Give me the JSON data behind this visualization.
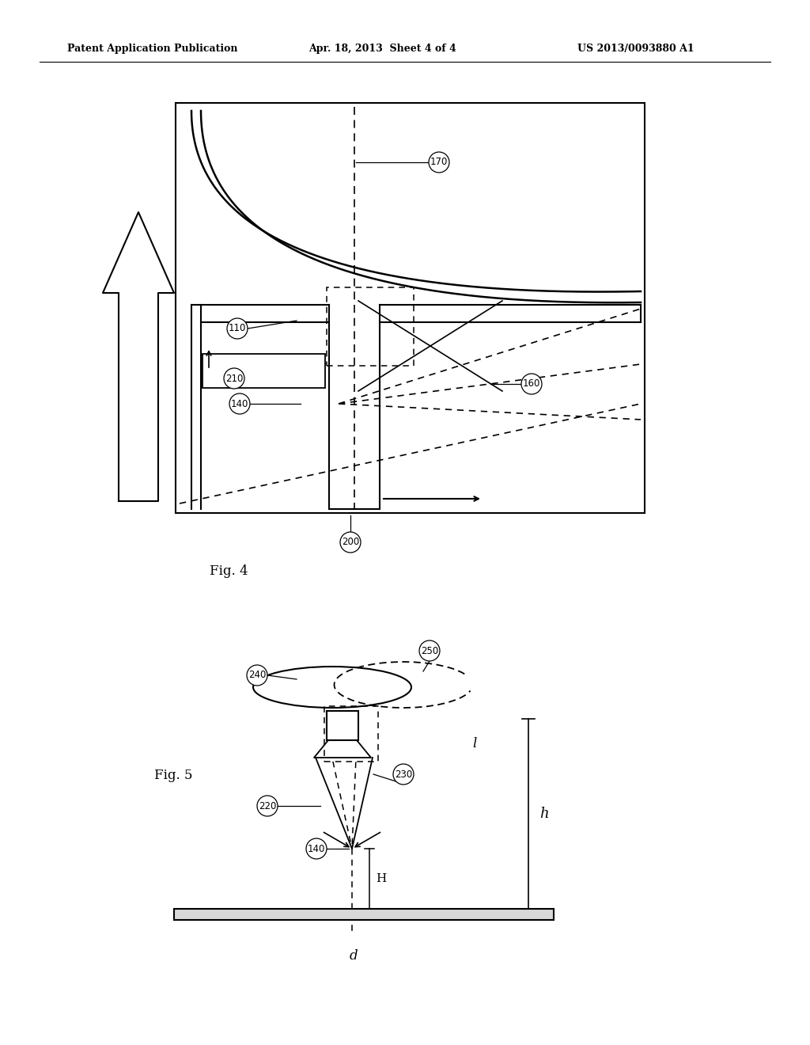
{
  "bg_color": "#ffffff",
  "text_color": "#000000",
  "header_left": "Patent Application Publication",
  "header_mid": "Apr. 18, 2013  Sheet 4 of 4",
  "header_right": "US 2013/0093880 A1",
  "fig4_label": "Fig. 4",
  "fig5_label": "Fig. 5",
  "label_110": "110",
  "label_140": "140",
  "label_160": "160",
  "label_170": "170",
  "label_200": "200",
  "label_210": "210",
  "label_220": "220",
  "label_230": "230",
  "label_240": "240",
  "label_250": "250",
  "label_h": "h",
  "label_H": "H",
  "label_l": "l",
  "label_d": "d"
}
